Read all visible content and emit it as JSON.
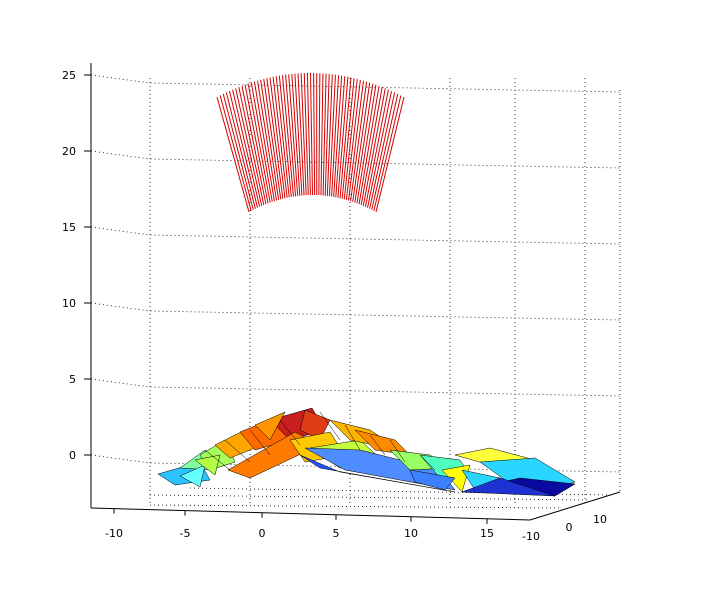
{
  "chart_data": {
    "type": "surface3d",
    "title": "",
    "xlabel": "",
    "ylabel": "",
    "zlabel": "",
    "x_ticks": [
      "-10",
      "-5",
      "0",
      "5",
      "10",
      "15"
    ],
    "y_ticks": [
      "-10",
      "0",
      "10"
    ],
    "z_ticks": [
      "0",
      "5",
      "10",
      "15",
      "20",
      "25"
    ],
    "xlim": [
      -12,
      20
    ],
    "ylim": [
      -12,
      12
    ],
    "zlim": [
      -3,
      26
    ],
    "grid": true,
    "series": [
      {
        "type": "vertical-lines",
        "color": "#d40000",
        "count": 61,
        "z_range": [
          16,
          25.5
        ]
      },
      {
        "type": "terrain-surface",
        "colormap": "jet",
        "z_range": [
          -2.5,
          3
        ]
      }
    ]
  }
}
